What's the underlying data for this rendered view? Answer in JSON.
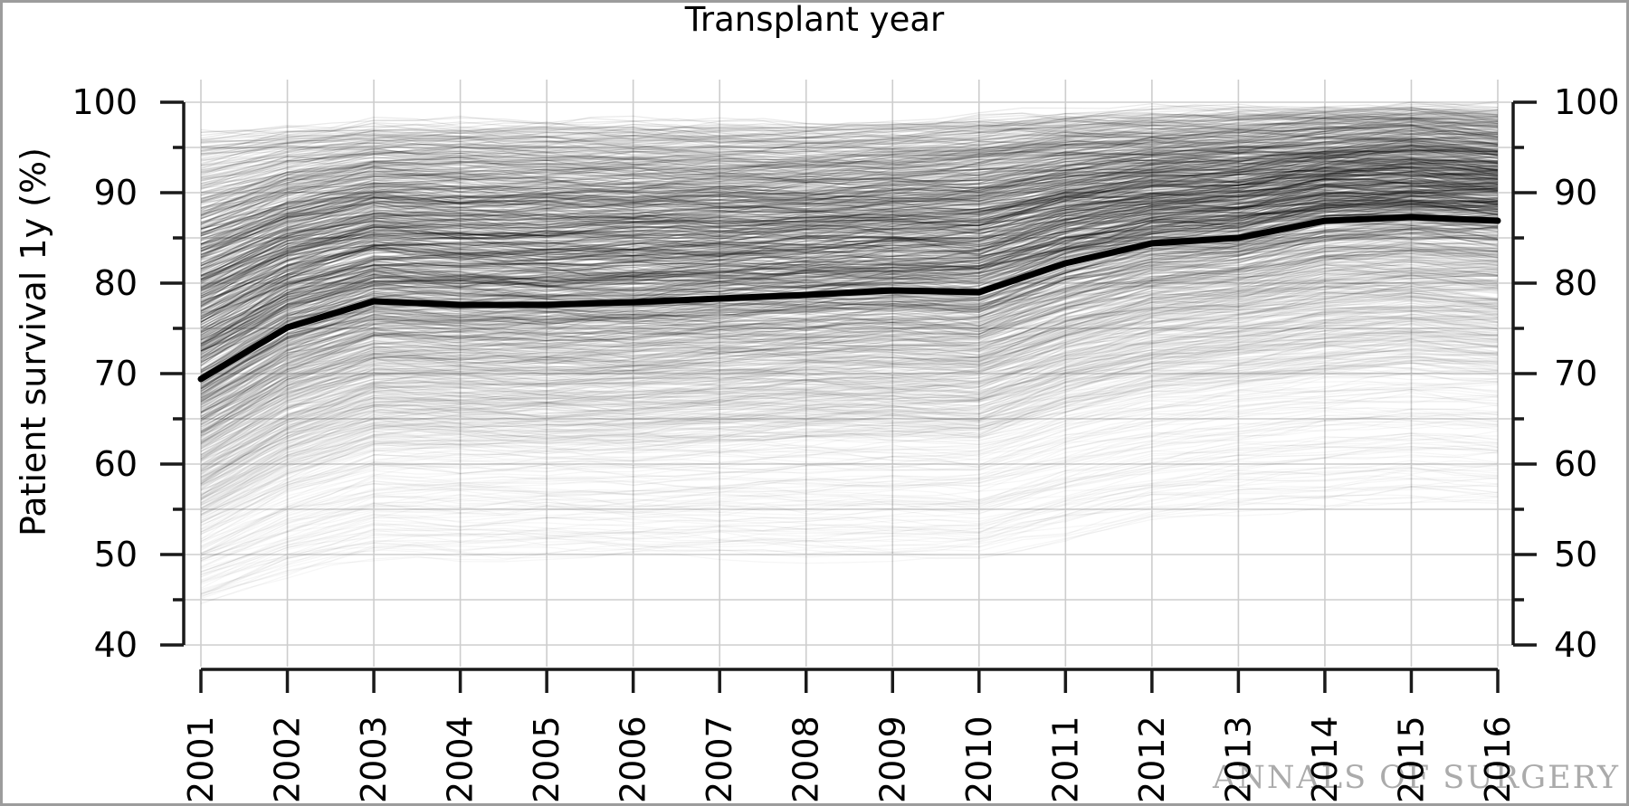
{
  "watermark": {
    "text": "ANNALS OF SURGERY"
  },
  "colors": {
    "median_line": "#000000",
    "cloud_line": "#000000",
    "grid": "#cdcdcd",
    "axis": "#1a1a1a",
    "text": "#000000",
    "watermark": "#ababab",
    "frame": "#9c9c9c",
    "background": "#ffffff"
  },
  "chart_data": {
    "type": "line",
    "title": "Transplant year",
    "xlabel": "",
    "ylabel": "Patient survival 1y (%)",
    "x": [
      2001,
      2002,
      2003,
      2004,
      2005,
      2006,
      2007,
      2008,
      2009,
      2010,
      2011,
      2012,
      2013,
      2014,
      2015,
      2016
    ],
    "ylim": [
      40,
      100
    ],
    "y_ticks_major": [
      100,
      90,
      80,
      70,
      60,
      50,
      40
    ],
    "y_ticks_minor": [
      95,
      85,
      75,
      65,
      55,
      45
    ],
    "grid": true,
    "legend": "none",
    "series": [
      {
        "name": "median 1-year patient survival (bold line)",
        "values": [
          69.4,
          75.1,
          78.0,
          77.6,
          77.6,
          77.9,
          78.3,
          78.7,
          79.2,
          79.0,
          82.2,
          84.4,
          85.0,
          86.9,
          87.3,
          86.9
        ]
      }
    ],
    "cloud": {
      "style": "spaghetti-cloud of semi-transparent individual trajectories",
      "q_min": [
        45,
        48,
        50,
        50,
        50,
        50,
        50,
        50,
        50,
        50,
        52,
        54,
        55,
        55.5,
        56,
        56
      ],
      "q10": [
        54,
        59,
        62,
        62,
        62,
        62,
        62.5,
        63,
        63,
        63,
        66,
        68,
        69,
        70,
        70.5,
        70
      ],
      "q90": [
        88.5,
        91.5,
        93,
        93,
        93,
        93,
        93,
        93.2,
        93.5,
        94,
        95,
        95.5,
        96,
        96.5,
        97,
        96.5
      ],
      "q_max": [
        96.5,
        97,
        97.5,
        97.5,
        97.5,
        97.5,
        97.5,
        97.5,
        97.5,
        98,
        98.5,
        99,
        99,
        99.3,
        99.3,
        99
      ]
    }
  }
}
